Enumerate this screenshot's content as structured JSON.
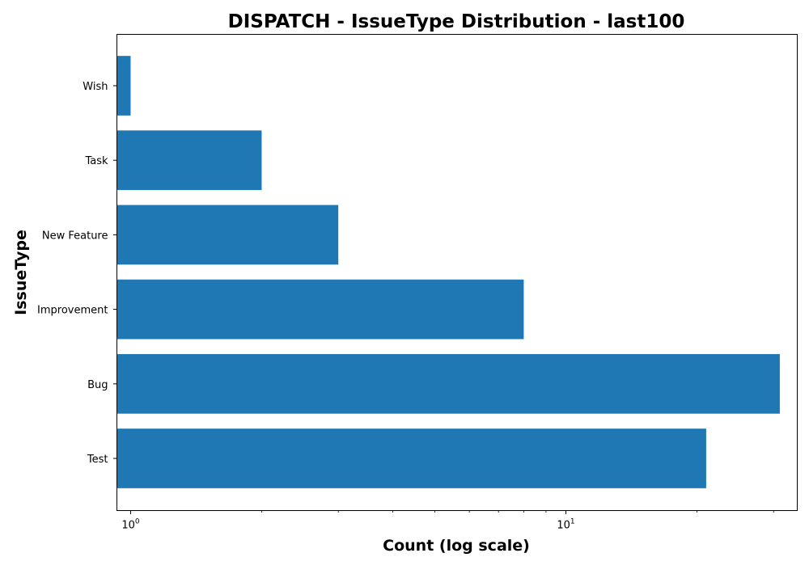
{
  "chart_data": {
    "type": "bar",
    "orientation": "horizontal",
    "title": "DISPATCH - IssueType Distribution - last100",
    "xlabel": "Count (log scale)",
    "ylabel": "IssueType",
    "x_scale": "log",
    "xlim": [
      0.93,
      34
    ],
    "x_ticks": [
      {
        "value": 1,
        "base": "10",
        "exp": "0"
      },
      {
        "value": 10,
        "base": "10",
        "exp": "1"
      }
    ],
    "categories": [
      "Wish",
      "Task",
      "New Feature",
      "Improvement",
      "Bug",
      "Test"
    ],
    "values": [
      1,
      2,
      3,
      8,
      31,
      21
    ],
    "bar_color": "#1f77b4",
    "grid": false,
    "legend": false
  }
}
